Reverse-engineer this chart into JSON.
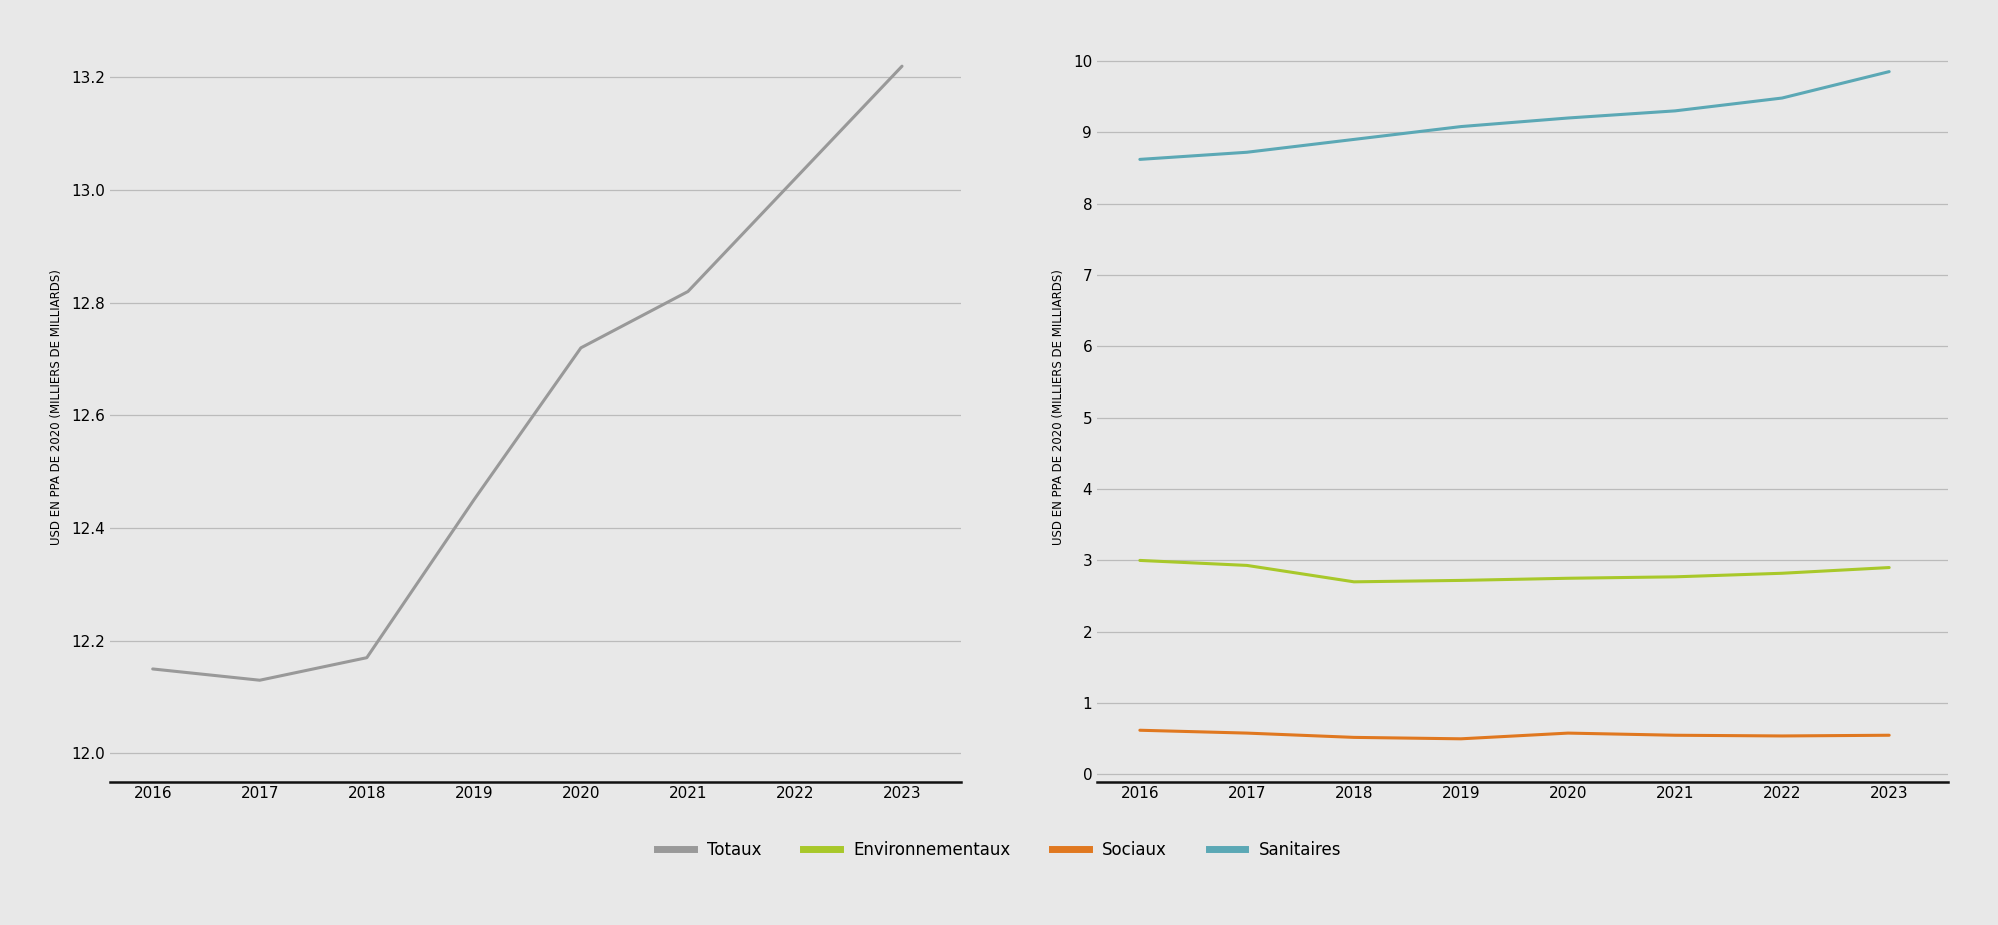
{
  "years": [
    2016,
    2017,
    2018,
    2019,
    2020,
    2021,
    2022,
    2023
  ],
  "totaux": [
    12.15,
    12.13,
    12.17,
    12.45,
    12.72,
    12.82,
    13.02,
    13.22
  ],
  "environnementaux": [
    3.0,
    2.93,
    2.7,
    2.72,
    2.75,
    2.77,
    2.82,
    2.9
  ],
  "sociaux": [
    0.62,
    0.58,
    0.52,
    0.5,
    0.58,
    0.55,
    0.54,
    0.55
  ],
  "sanitaires": [
    8.62,
    8.72,
    8.9,
    9.08,
    9.2,
    9.3,
    9.48,
    9.85
  ],
  "color_totaux": "#999999",
  "color_environnementaux": "#a8c82a",
  "color_sociaux": "#e07820",
  "color_sanitaires": "#5ba8b5",
  "ylabel": "USD EN PPA DE 2020 (MILLIERS DE MILLIARDS)",
  "ylim_left": [
    11.95,
    13.28
  ],
  "ylim_right": [
    -0.1,
    10.4
  ],
  "yticks_left": [
    12.0,
    12.2,
    12.4,
    12.6,
    12.8,
    13.0,
    13.2
  ],
  "yticks_right": [
    0,
    1,
    2,
    3,
    4,
    5,
    6,
    7,
    8,
    9,
    10
  ],
  "legend_labels": [
    "Totaux",
    "Environnementaux",
    "Sociaux",
    "Sanitaires"
  ],
  "background_color": "#e8e8e8",
  "line_width": 2.2,
  "grid_color": "#bbbbbb",
  "spine_color": "#111111",
  "tick_fontsize": 11,
  "ylabel_fontsize": 8.5
}
